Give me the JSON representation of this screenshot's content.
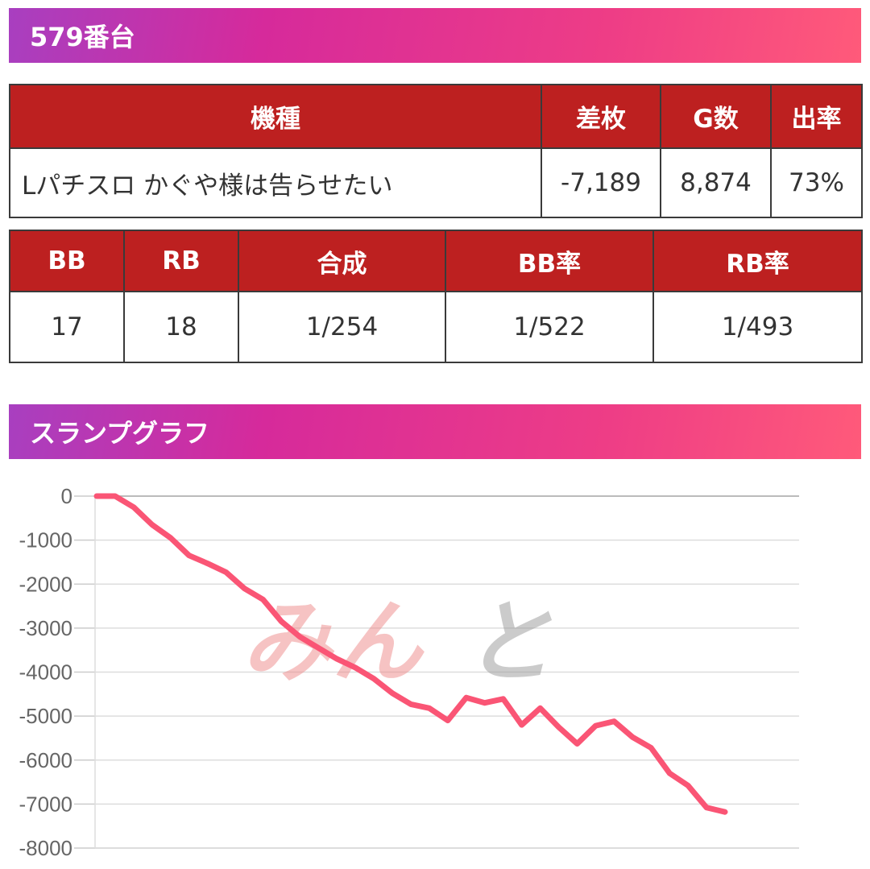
{
  "machine_header": {
    "title": "579番台"
  },
  "main_table": {
    "headers": {
      "name": "機種",
      "diff": "差枚",
      "games": "G数",
      "rate": "出率"
    },
    "row": {
      "name": "Lパチスロ かぐや様は告らせたい",
      "diff": "-7,189",
      "games": "8,874",
      "rate": "73%"
    }
  },
  "bonus_table": {
    "headers": {
      "bb": "BB",
      "rb": "RB",
      "combined": "合成",
      "bb_rate": "BB率",
      "rb_rate": "RB率"
    },
    "row": {
      "bb": "17",
      "rb": "18",
      "combined": "1/254",
      "bb_rate": "1/522",
      "rb_rate": "1/493"
    }
  },
  "slump_header": {
    "title": "スランプグラフ"
  },
  "chart_data": {
    "type": "line",
    "title": "",
    "xlabel": "",
    "ylabel": "",
    "ylim": [
      -8000,
      0
    ],
    "yticks": [
      0,
      -1000,
      -2000,
      -3000,
      -4000,
      -5000,
      -6000,
      -7000,
      -8000
    ],
    "grid": true,
    "line_color": "#fa5575",
    "series": [
      {
        "values": [
          0,
          0,
          -250,
          -650,
          -950,
          -1350,
          -1530,
          -1730,
          -2100,
          -2350,
          -2850,
          -3200,
          -3450,
          -3700,
          -3900,
          -4150,
          -4480,
          -4730,
          -4820,
          -5100,
          -4580,
          -4700,
          -4610,
          -5200,
          -4820,
          -5250,
          -5630,
          -5220,
          -5120,
          -5480,
          -5720,
          -6300,
          -6580,
          -7080,
          -7180
        ]
      }
    ]
  },
  "watermark": {
    "left": "みん",
    "right": "と"
  }
}
